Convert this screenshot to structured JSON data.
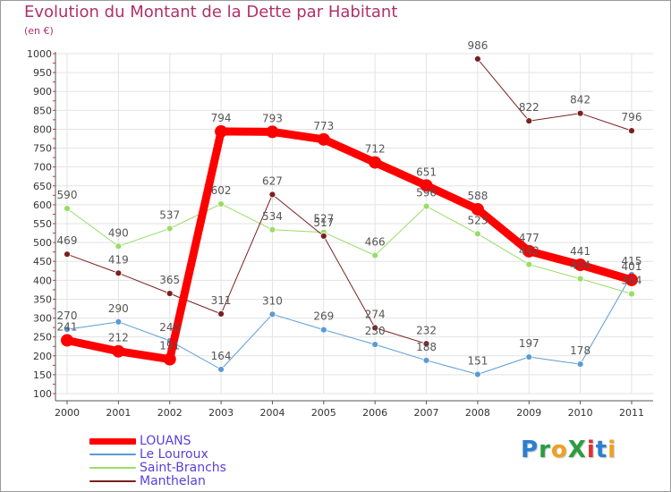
{
  "title": "Evolution du Montant de la Dette par Habitant",
  "subtitle": "(en €)",
  "logo": {
    "text": "ProXiti",
    "colors": [
      "#2a7fd0",
      "#2a9d3f",
      "#f0a020",
      "#2a9d3f",
      "#e03030",
      "#2a7fd0",
      "#f0a020"
    ]
  },
  "chart_data": {
    "type": "line",
    "title": "Evolution du Montant de la Dette par Habitant",
    "subtitle": "(en €)",
    "x": [
      "2000",
      "2001",
      "2002",
      "2003",
      "2004",
      "2005",
      "2006",
      "2007",
      "2008",
      "2009",
      "2010",
      "2011"
    ],
    "ylim": [
      100,
      1000
    ],
    "yticks": [
      100,
      150,
      200,
      250,
      300,
      350,
      400,
      450,
      500,
      550,
      600,
      650,
      700,
      750,
      800,
      850,
      900,
      950,
      1000
    ],
    "grid": true,
    "legend_position": "bottom-left",
    "series": [
      {
        "name": "LOUANS",
        "color": "#ff0000",
        "values": [
          241,
          212,
          191,
          794,
          793,
          773,
          712,
          651,
          588,
          477,
          441,
          401
        ]
      },
      {
        "name": "Le Louroux",
        "color": "#5b9bd5",
        "values": [
          270,
          290,
          240,
          164,
          310,
          269,
          230,
          188,
          151,
          197,
          178,
          415
        ]
      },
      {
        "name": "Saint-Branchs",
        "color": "#99dd66",
        "values": [
          590,
          490,
          537,
          602,
          534,
          527,
          466,
          596,
          523,
          442,
          404,
          364
        ]
      },
      {
        "name": "Manthelan",
        "color": "#7a2020",
        "values": [
          469,
          419,
          365,
          311,
          627,
          517,
          274,
          232,
          986,
          822,
          842,
          796
        ]
      }
    ],
    "data_labels": [
      [
        "241",
        "212",
        "191",
        "794",
        "793",
        "773",
        "712",
        "651",
        "588",
        "477",
        "441",
        "401"
      ],
      [
        "270",
        "290",
        "240",
        "164",
        "310",
        "269",
        "230",
        "188",
        "151",
        "197",
        "178",
        "415"
      ],
      [
        "590",
        "490",
        "537",
        "602",
        "534",
        "527",
        "466",
        "596",
        "523",
        "442",
        "404",
        "364"
      ],
      [
        "469",
        "419",
        "365",
        "311",
        "627",
        "517",
        "274",
        "232",
        "986",
        "822",
        "842",
        "796"
      ]
    ],
    "breaks": [
      [],
      [],
      [],
      [
        7
      ]
    ]
  }
}
